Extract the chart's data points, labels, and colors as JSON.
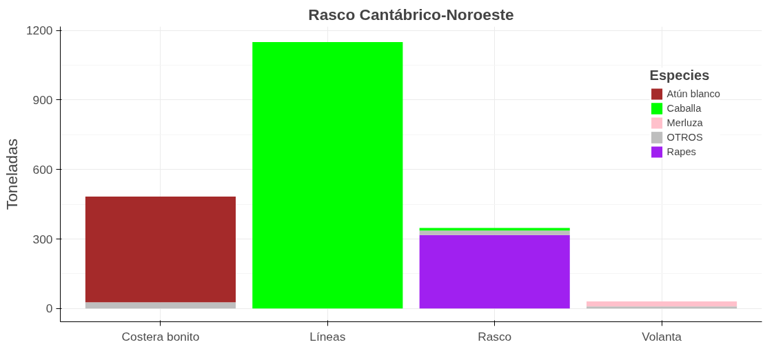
{
  "chart_data": {
    "type": "bar",
    "title": "Rasco Cantábrico-Noroeste",
    "ylabel": "Toneladas",
    "legend_title": "Especies",
    "categories": [
      "Costera bonito",
      "Líneas",
      "Rasco",
      "Volanta"
    ],
    "stacked": true,
    "series": [
      {
        "name": "Rapes",
        "color": "#a020f0",
        "values": [
          null,
          null,
          317,
          null
        ]
      },
      {
        "name": "OTROS",
        "color": "#bebebe",
        "values": [
          27,
          null,
          20,
          9
        ]
      },
      {
        "name": "Merluza",
        "color": "#ffc0cb",
        "values": [
          null,
          null,
          null,
          22
        ]
      },
      {
        "name": "Caballa",
        "color": "#00ff00",
        "values": [
          null,
          1150,
          11,
          null
        ]
      },
      {
        "name": "Atún blanco",
        "color": "#a52a2a",
        "values": [
          456,
          null,
          null,
          null
        ]
      }
    ],
    "ylim": [
      -57,
      1217
    ],
    "yticks": [
      0,
      300,
      600,
      900,
      1200
    ],
    "grid": true,
    "legend": "top right"
  }
}
